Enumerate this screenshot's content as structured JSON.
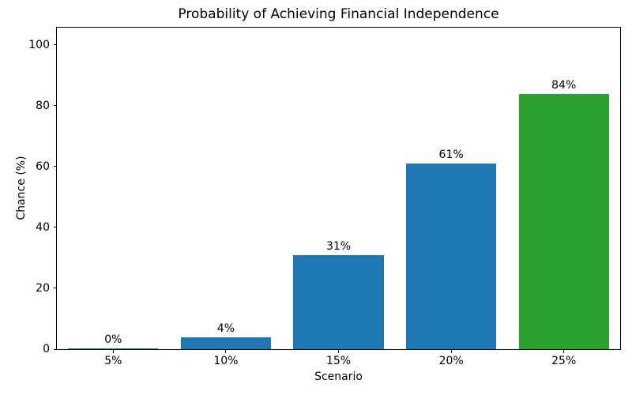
{
  "chart_data": {
    "type": "bar",
    "title": "Probability of Achieving Financial Independence",
    "xlabel": "Scenario",
    "ylabel": "Chance (%)",
    "categories": [
      "5%",
      "10%",
      "15%",
      "20%",
      "25%"
    ],
    "values": [
      0.3,
      4,
      31,
      61,
      84
    ],
    "bar_labels": [
      "0%",
      "4%",
      "31%",
      "61%",
      "84%"
    ],
    "bar_colors": [
      "#1f77b4",
      "#1f77b4",
      "#1f77b4",
      "#1f77b4",
      "#2ca02c"
    ],
    "yticks": [
      0,
      20,
      40,
      60,
      80,
      100
    ],
    "ylim": [
      0,
      105.7
    ],
    "grid": false,
    "legend_position": "none",
    "axis_color": "#000000",
    "text_color": "#000000",
    "background_color": "#ffffff"
  }
}
